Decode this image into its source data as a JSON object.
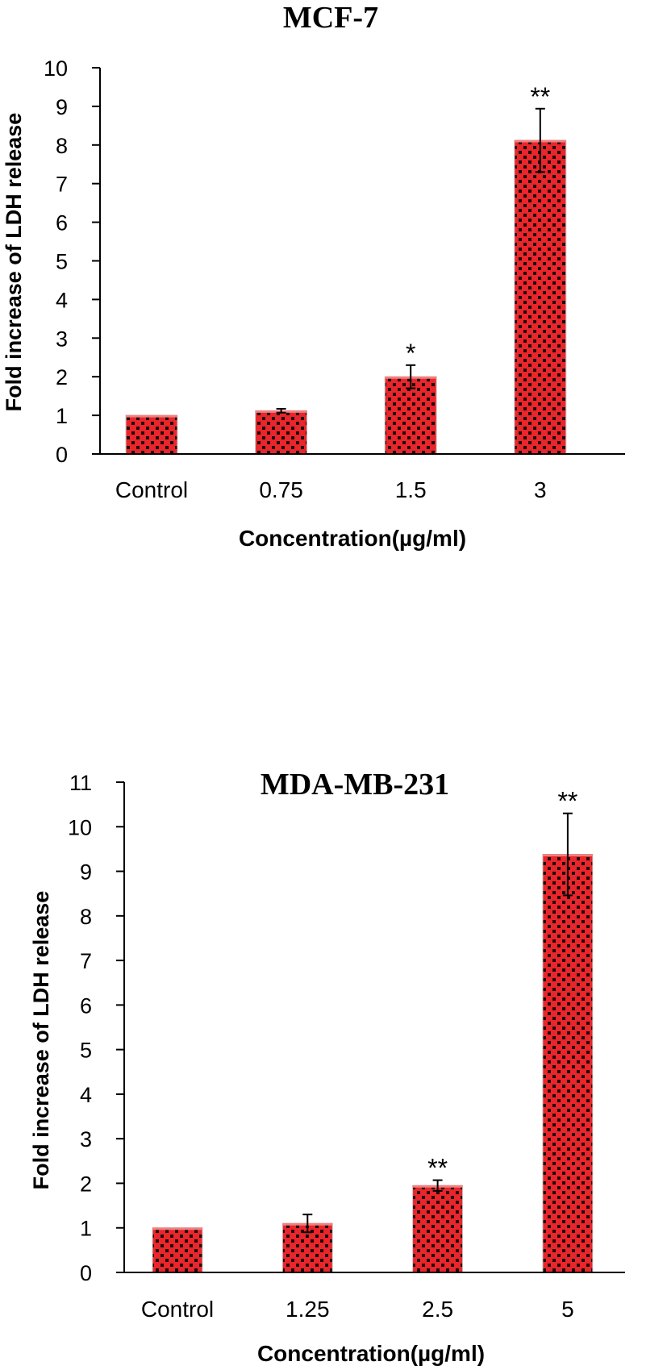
{
  "chart_data": [
    {
      "type": "bar",
      "title": "MCF-7",
      "xlabel": "Concentration(µg/ml)",
      "ylabel": "Fold increase of LDH release",
      "categories": [
        "Control",
        "0.75",
        "1.5",
        "3"
      ],
      "values": [
        1.0,
        1.12,
        2.0,
        8.12
      ],
      "errors": [
        0.0,
        0.05,
        0.3,
        0.82
      ],
      "significance": [
        "",
        "",
        "*",
        "**"
      ],
      "ylim": [
        0,
        10
      ],
      "yticks": [
        0,
        1,
        2,
        3,
        4,
        5,
        6,
        7,
        8,
        9,
        10
      ],
      "bar_color": "#e8262b",
      "dot_color": "#1a0a0a",
      "grid": false
    },
    {
      "type": "bar",
      "title": "MDA-MB-231",
      "xlabel": "Concentration(µg/ml)",
      "ylabel": "Fold increase of LDH release",
      "categories": [
        "Control",
        "1.25",
        "2.5",
        "5"
      ],
      "values": [
        1.0,
        1.1,
        1.95,
        9.38
      ],
      "errors": [
        0.0,
        0.2,
        0.12,
        0.92
      ],
      "significance": [
        "",
        "",
        "**",
        "**"
      ],
      "ylim": [
        0,
        11
      ],
      "yticks": [
        0,
        1,
        2,
        3,
        4,
        5,
        6,
        7,
        8,
        9,
        10,
        11
      ],
      "bar_color": "#e8262b",
      "dot_color": "#1a0a0a",
      "grid": false
    }
  ]
}
